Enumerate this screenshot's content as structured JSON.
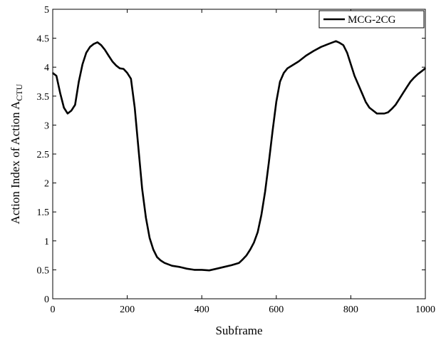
{
  "chart_data": {
    "type": "line",
    "xlabel": "Subframe",
    "ylabel_main": "Action Index of Action A",
    "ylabel_subscript": "CTU",
    "xlim": [
      0,
      1000
    ],
    "ylim": [
      0,
      5
    ],
    "xticks": [
      0,
      200,
      400,
      600,
      800,
      1000
    ],
    "xtick_labels": [
      "0",
      "200",
      "400",
      "600",
      "800",
      "1000"
    ],
    "yticks": [
      0,
      0.5,
      1,
      1.5,
      2,
      2.5,
      3,
      3.5,
      4,
      4.5,
      5
    ],
    "ytick_labels": [
      "0",
      "0.5",
      "1",
      "1.5",
      "2",
      "2.5",
      "3",
      "3.5",
      "4",
      "4.5",
      "5"
    ],
    "grid": false,
    "legend_position": "top-right",
    "series": [
      {
        "name": "MCG-2CG",
        "color": "#000000",
        "x": [
          0,
          10,
          20,
          30,
          40,
          50,
          60,
          70,
          80,
          90,
          100,
          110,
          120,
          130,
          140,
          150,
          160,
          170,
          180,
          190,
          200,
          210,
          220,
          230,
          240,
          250,
          260,
          270,
          280,
          290,
          300,
          320,
          340,
          360,
          380,
          400,
          420,
          440,
          460,
          480,
          500,
          510,
          520,
          530,
          540,
          550,
          560,
          570,
          580,
          590,
          600,
          610,
          620,
          630,
          640,
          660,
          680,
          700,
          720,
          740,
          760,
          770,
          780,
          790,
          800,
          810,
          820,
          830,
          840,
          850,
          860,
          870,
          880,
          890,
          900,
          910,
          920,
          930,
          940,
          950,
          960,
          970,
          980,
          990,
          1000
        ],
        "values": [
          3.9,
          3.85,
          3.55,
          3.3,
          3.2,
          3.25,
          3.35,
          3.75,
          4.05,
          4.25,
          4.35,
          4.4,
          4.43,
          4.38,
          4.3,
          4.2,
          4.1,
          4.03,
          3.98,
          3.97,
          3.9,
          3.8,
          3.3,
          2.6,
          1.9,
          1.4,
          1.05,
          0.85,
          0.72,
          0.66,
          0.62,
          0.57,
          0.55,
          0.52,
          0.5,
          0.5,
          0.49,
          0.52,
          0.55,
          0.58,
          0.62,
          0.68,
          0.75,
          0.85,
          0.97,
          1.15,
          1.45,
          1.85,
          2.35,
          2.9,
          3.4,
          3.75,
          3.9,
          3.98,
          4.02,
          4.1,
          4.2,
          4.28,
          4.35,
          4.4,
          4.45,
          4.42,
          4.38,
          4.25,
          4.05,
          3.85,
          3.7,
          3.55,
          3.4,
          3.3,
          3.25,
          3.2,
          3.2,
          3.2,
          3.22,
          3.28,
          3.35,
          3.45,
          3.55,
          3.65,
          3.75,
          3.82,
          3.88,
          3.93,
          3.98
        ]
      }
    ]
  }
}
